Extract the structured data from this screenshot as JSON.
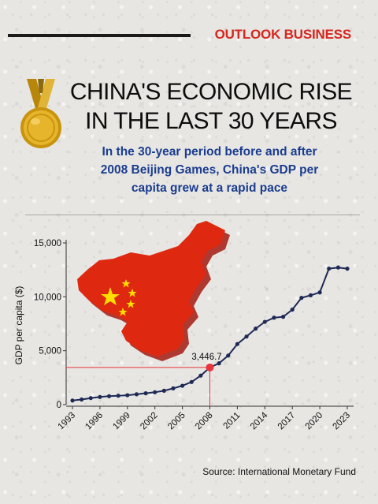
{
  "brand": "OUTLOOK BUSINESS",
  "title": {
    "line1": "CHINA'S ECONOMIC RISE",
    "line2": "IN THE LAST 30 YEARS"
  },
  "subtitle": {
    "line1": "In the 30-year period before and after",
    "line2": "2008 Beijing Games, China's GDP per",
    "line3": "capita grew at a rapid pace"
  },
  "source": "Source: International Monetary Fund",
  "colors": {
    "brand_red": "#d7261e",
    "subtitle_blue": "#1b3d8f",
    "line": "#1e2a55",
    "highlight": "#e8343a",
    "china_flag_red": "#de2910",
    "china_flag_star": "#ffde00",
    "medal_gold": "#d9a41a"
  },
  "icons": {
    "medal": "gold-medal-icon",
    "map": "china-flag-map-icon"
  },
  "chart_data": {
    "type": "line",
    "ylabel": "GDP per capita ($)",
    "xlabel": "",
    "ylim": [
      0,
      15000
    ],
    "yticks": [
      0,
      5000,
      10000,
      15000
    ],
    "ytick_labels": [
      "0",
      "5,000",
      "10,000",
      "15,000"
    ],
    "xlim": [
      1993,
      2023
    ],
    "xticks": [
      1993,
      1996,
      1999,
      2002,
      2005,
      2008,
      2011,
      2014,
      2017,
      2020,
      2023
    ],
    "xtick_labels": [
      "1993",
      "1996",
      "1999",
      "2002",
      "2005",
      "2008",
      "2011",
      "2014",
      "2017",
      "2020",
      "2023"
    ],
    "grid": false,
    "highlight": {
      "x": 2008,
      "y": 3446.7,
      "label": "3,446.7"
    },
    "series": [
      {
        "x": [
          1993,
          1994,
          1995,
          1996,
          1997,
          1998,
          1999,
          2000,
          2001,
          2002,
          2003,
          2004,
          2005,
          2006,
          2007,
          2008,
          2009,
          2010,
          2011,
          2012,
          2013,
          2014,
          2015,
          2016,
          2017,
          2018,
          2019,
          2020,
          2021,
          2022,
          2023
        ],
        "values": [
          377,
          473,
          609,
          709,
          781,
          828,
          873,
          959,
          1053,
          1149,
          1289,
          1509,
          1753,
          2099,
          2694,
          3446.7,
          3832,
          4550,
          5618,
          6317,
          7051,
          7679,
          8067,
          8148,
          8816,
          9905,
          10144,
          10409,
          12617,
          12720,
          12614
        ]
      }
    ]
  }
}
